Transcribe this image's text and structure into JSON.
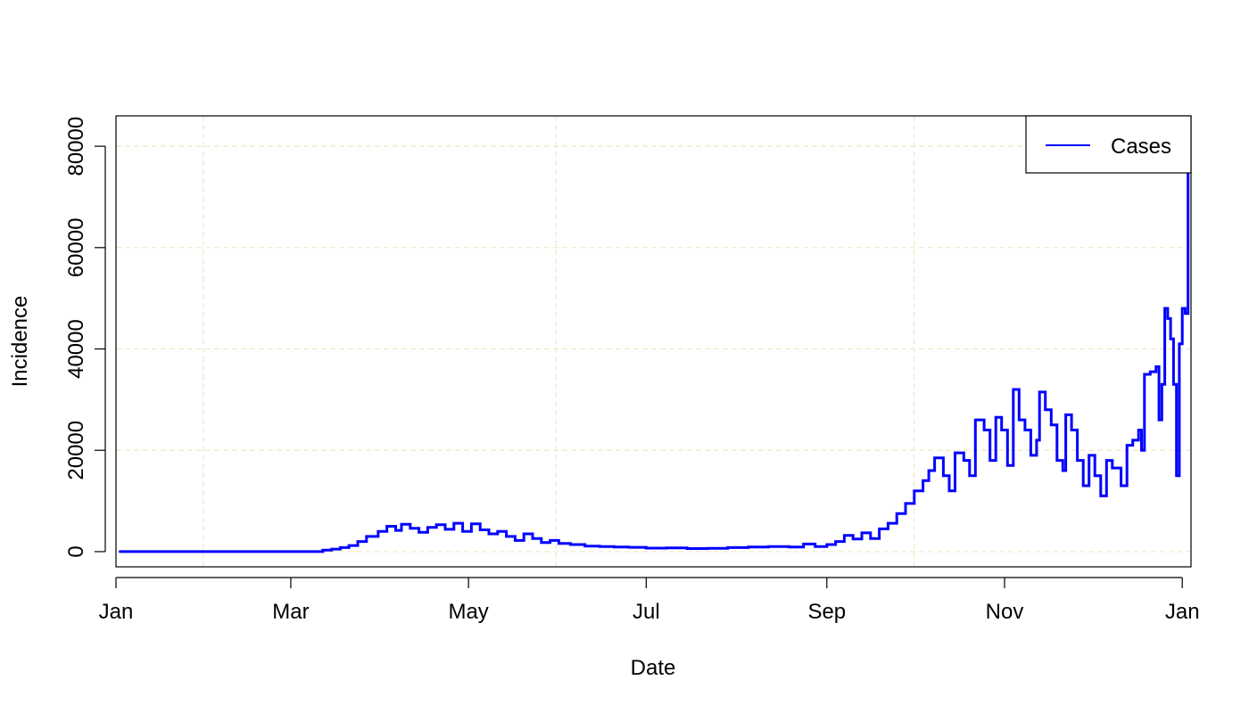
{
  "chart_data": {
    "type": "line",
    "title": "",
    "xlabel": "Date",
    "ylabel": "Incidence",
    "xlim": [
      "2020-01-01",
      "2021-01-04"
    ],
    "ylim": [
      -3000,
      86000
    ],
    "x_ticks": [
      {
        "date": "2020-01-01",
        "label": "Jan"
      },
      {
        "date": "2020-03-01",
        "label": "Mar"
      },
      {
        "date": "2020-05-01",
        "label": "May"
      },
      {
        "date": "2020-07-01",
        "label": "Jul"
      },
      {
        "date": "2020-09-01",
        "label": "Sep"
      },
      {
        "date": "2020-11-01",
        "label": "Nov"
      },
      {
        "date": "2021-01-01",
        "label": "Jan"
      }
    ],
    "y_ticks": [
      0,
      20000,
      40000,
      60000,
      80000
    ],
    "grid": true,
    "grid_color": "#f0e6c8",
    "legend": {
      "placement": "top-right",
      "entries": [
        "Cases"
      ]
    },
    "series": [
      {
        "name": "Cases",
        "color": "#0000ff",
        "step": true,
        "points": [
          [
            "2020-01-02",
            0
          ],
          [
            "2020-03-10",
            0
          ],
          [
            "2020-03-12",
            300
          ],
          [
            "2020-03-15",
            500
          ],
          [
            "2020-03-18",
            800
          ],
          [
            "2020-03-21",
            1200
          ],
          [
            "2020-03-24",
            2000
          ],
          [
            "2020-03-27",
            3000
          ],
          [
            "2020-03-31",
            4000
          ],
          [
            "2020-04-03",
            5000
          ],
          [
            "2020-04-06",
            4200
          ],
          [
            "2020-04-08",
            5400
          ],
          [
            "2020-04-11",
            4600
          ],
          [
            "2020-04-14",
            3800
          ],
          [
            "2020-04-17",
            4800
          ],
          [
            "2020-04-20",
            5300
          ],
          [
            "2020-04-23",
            4400
          ],
          [
            "2020-04-26",
            5600
          ],
          [
            "2020-04-29",
            4000
          ],
          [
            "2020-05-02",
            5500
          ],
          [
            "2020-05-05",
            4300
          ],
          [
            "2020-05-08",
            3500
          ],
          [
            "2020-05-11",
            4000
          ],
          [
            "2020-05-14",
            3000
          ],
          [
            "2020-05-17",
            2200
          ],
          [
            "2020-05-20",
            3500
          ],
          [
            "2020-05-23",
            2600
          ],
          [
            "2020-05-26",
            1800
          ],
          [
            "2020-05-29",
            2200
          ],
          [
            "2020-06-01",
            1600
          ],
          [
            "2020-06-05",
            1400
          ],
          [
            "2020-06-10",
            1100
          ],
          [
            "2020-06-15",
            1000
          ],
          [
            "2020-06-20",
            900
          ],
          [
            "2020-06-25",
            850
          ],
          [
            "2020-07-01",
            700
          ],
          [
            "2020-07-08",
            750
          ],
          [
            "2020-07-15",
            600
          ],
          [
            "2020-07-22",
            650
          ],
          [
            "2020-07-29",
            800
          ],
          [
            "2020-08-05",
            900
          ],
          [
            "2020-08-12",
            1000
          ],
          [
            "2020-08-19",
            900
          ],
          [
            "2020-08-24",
            1500
          ],
          [
            "2020-08-28",
            1000
          ],
          [
            "2020-09-01",
            1400
          ],
          [
            "2020-09-04",
            2000
          ],
          [
            "2020-09-07",
            3200
          ],
          [
            "2020-09-10",
            2500
          ],
          [
            "2020-09-13",
            3700
          ],
          [
            "2020-09-16",
            2600
          ],
          [
            "2020-09-19",
            4500
          ],
          [
            "2020-09-22",
            5600
          ],
          [
            "2020-09-25",
            7500
          ],
          [
            "2020-09-28",
            9500
          ],
          [
            "2020-10-01",
            12000
          ],
          [
            "2020-10-04",
            14000
          ],
          [
            "2020-10-06",
            16000
          ],
          [
            "2020-10-08",
            18500
          ],
          [
            "2020-10-11",
            15000
          ],
          [
            "2020-10-13",
            12000
          ],
          [
            "2020-10-15",
            19500
          ],
          [
            "2020-10-18",
            18000
          ],
          [
            "2020-10-20",
            15000
          ],
          [
            "2020-10-22",
            26000
          ],
          [
            "2020-10-25",
            24000
          ],
          [
            "2020-10-27",
            18000
          ],
          [
            "2020-10-29",
            26500
          ],
          [
            "2020-10-31",
            24000
          ],
          [
            "2020-11-02",
            17000
          ],
          [
            "2020-11-04",
            32000
          ],
          [
            "2020-11-06",
            26000
          ],
          [
            "2020-11-08",
            24000
          ],
          [
            "2020-11-10",
            19000
          ],
          [
            "2020-11-12",
            22000
          ],
          [
            "2020-11-13",
            31500
          ],
          [
            "2020-11-15",
            28000
          ],
          [
            "2020-11-17",
            25000
          ],
          [
            "2020-11-19",
            18000
          ],
          [
            "2020-11-21",
            16000
          ],
          [
            "2020-11-22",
            27000
          ],
          [
            "2020-11-24",
            24000
          ],
          [
            "2020-11-26",
            18000
          ],
          [
            "2020-11-28",
            13000
          ],
          [
            "2020-11-30",
            19000
          ],
          [
            "2020-12-02",
            15000
          ],
          [
            "2020-12-04",
            11000
          ],
          [
            "2020-12-06",
            18000
          ],
          [
            "2020-12-08",
            16500
          ],
          [
            "2020-12-11",
            13000
          ],
          [
            "2020-12-13",
            21000
          ],
          [
            "2020-12-15",
            22000
          ],
          [
            "2020-12-17",
            24000
          ],
          [
            "2020-12-18",
            20000
          ],
          [
            "2020-12-19",
            35000
          ],
          [
            "2020-12-21",
            35500
          ],
          [
            "2020-12-23",
            36500
          ],
          [
            "2020-12-24",
            26000
          ],
          [
            "2020-12-25",
            33000
          ],
          [
            "2020-12-26",
            48000
          ],
          [
            "2020-12-27",
            46000
          ],
          [
            "2020-12-28",
            42000
          ],
          [
            "2020-12-29",
            33000
          ],
          [
            "2020-12-30",
            15000
          ],
          [
            "2020-12-31",
            41000
          ],
          [
            "2021-01-01",
            48000
          ],
          [
            "2021-01-02",
            47000
          ],
          [
            "2021-01-03",
            85000
          ]
        ]
      }
    ]
  }
}
